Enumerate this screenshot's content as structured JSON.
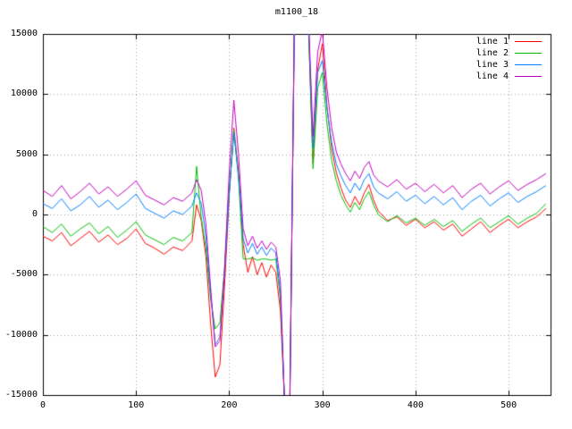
{
  "chart_data": {
    "type": "line",
    "title": "m1100_18",
    "xlabel": "",
    "ylabel": "",
    "xlim": [
      0,
      545
    ],
    "ylim": [
      -15000,
      15000
    ],
    "x_ticks": [
      0,
      100,
      200,
      300,
      400,
      500
    ],
    "y_ticks": [
      -15000,
      -10000,
      -5000,
      0,
      5000,
      10000,
      15000
    ],
    "grid": true,
    "grid_style": "dotted",
    "legend_position": "top-right",
    "border_color": "#000000",
    "grid_color": "#a0a0a0",
    "x": [
      0,
      10,
      20,
      30,
      40,
      50,
      60,
      70,
      80,
      90,
      100,
      110,
      120,
      130,
      140,
      150,
      160,
      165,
      170,
      175,
      180,
      185,
      190,
      195,
      200,
      205,
      210,
      215,
      220,
      225,
      230,
      235,
      240,
      245,
      250,
      255,
      260,
      265,
      270,
      275,
      280,
      285,
      290,
      295,
      300,
      305,
      310,
      315,
      320,
      325,
      330,
      335,
      340,
      345,
      350,
      355,
      360,
      370,
      380,
      390,
      400,
      410,
      420,
      430,
      440,
      450,
      460,
      470,
      480,
      490,
      500,
      510,
      520,
      530,
      540
    ],
    "series": [
      {
        "name": "line 1",
        "color": "#ff0000",
        "values": [
          -1800,
          -2200,
          -1500,
          -2600,
          -2000,
          -1400,
          -2300,
          -1700,
          -2500,
          -2000,
          -1200,
          -2400,
          -2800,
          -3300,
          -2700,
          -3000,
          -2200,
          800,
          -500,
          -3500,
          -9000,
          -13500,
          -12500,
          -6000,
          1500,
          7200,
          3500,
          -2500,
          -4800,
          -3500,
          -5000,
          -4000,
          -5200,
          -4200,
          -4800,
          -8000,
          -16500,
          -16000,
          16000,
          16500,
          15500,
          16000,
          4200,
          12000,
          14200,
          9000,
          5500,
          3500,
          2200,
          1200,
          600,
          1500,
          800,
          1800,
          2500,
          1200,
          300,
          -500,
          -200,
          -900,
          -400,
          -1100,
          -600,
          -1300,
          -800,
          -1800,
          -1200,
          -600,
          -1500,
          -900,
          -400,
          -1100,
          -600,
          -200,
          500
        ]
      },
      {
        "name": "line 2",
        "color": "#00c000",
        "values": [
          -1000,
          -1500,
          -800,
          -1800,
          -1200,
          -700,
          -1600,
          -1000,
          -1900,
          -1300,
          -600,
          -1700,
          -2100,
          -2500,
          -1900,
          -2200,
          -1500,
          4000,
          -300,
          -2800,
          -7000,
          -9500,
          -9000,
          -4500,
          2000,
          7000,
          3000,
          -3700,
          -3700,
          -3600,
          -3800,
          -3700,
          -3700,
          -3800,
          -3700,
          -7000,
          -16500,
          -16200,
          15800,
          16200,
          15200,
          15800,
          3800,
          10500,
          11800,
          7500,
          4500,
          2800,
          1600,
          800,
          200,
          1000,
          400,
          1300,
          1900,
          800,
          0,
          -600,
          -100,
          -700,
          -300,
          -900,
          -400,
          -1000,
          -500,
          -1400,
          -800,
          -300,
          -1100,
          -600,
          -100,
          -800,
          -300,
          100,
          900
        ]
      },
      {
        "name": "line 3",
        "color": "#0080ff",
        "values": [
          900,
          500,
          1300,
          300,
          800,
          1500,
          600,
          1200,
          400,
          1000,
          1700,
          500,
          100,
          -300,
          300,
          0,
          700,
          1800,
          900,
          -1800,
          -6500,
          -10800,
          -10200,
          -5000,
          1800,
          6800,
          3200,
          -2000,
          -3200,
          -2400,
          -3300,
          -2700,
          -3400,
          -2800,
          -3200,
          -6500,
          -16800,
          -16400,
          16200,
          16600,
          15800,
          16200,
          5500,
          11800,
          12800,
          8800,
          6000,
          4200,
          3200,
          2400,
          1800,
          2600,
          2000,
          2900,
          3400,
          2300,
          1800,
          1300,
          1900,
          1100,
          1600,
          900,
          1500,
          800,
          1400,
          400,
          1100,
          1600,
          700,
          1300,
          1800,
          1000,
          1500,
          1900,
          2400
        ]
      },
      {
        "name": "line 4",
        "color": "#c000c0",
        "values": [
          2000,
          1500,
          2400,
          1300,
          1900,
          2600,
          1700,
          2300,
          1500,
          2100,
          2800,
          1600,
          1200,
          800,
          1400,
          1100,
          1800,
          2900,
          2000,
          -800,
          -6000,
          -11000,
          -10500,
          -4500,
          3500,
          9500,
          5000,
          -1200,
          -2600,
          -1800,
          -2800,
          -2200,
          -2900,
          -2300,
          -2700,
          -5500,
          -17000,
          -16600,
          16500,
          17000,
          16200,
          16600,
          6500,
          13500,
          15300,
          10500,
          7200,
          5200,
          4200,
          3400,
          2800,
          3600,
          3000,
          3900,
          4400,
          3300,
          2800,
          2300,
          2900,
          2100,
          2600,
          1900,
          2500,
          1800,
          2400,
          1400,
          2100,
          2600,
          1700,
          2300,
          2800,
          2000,
          2500,
          2900,
          3400
        ]
      }
    ]
  }
}
